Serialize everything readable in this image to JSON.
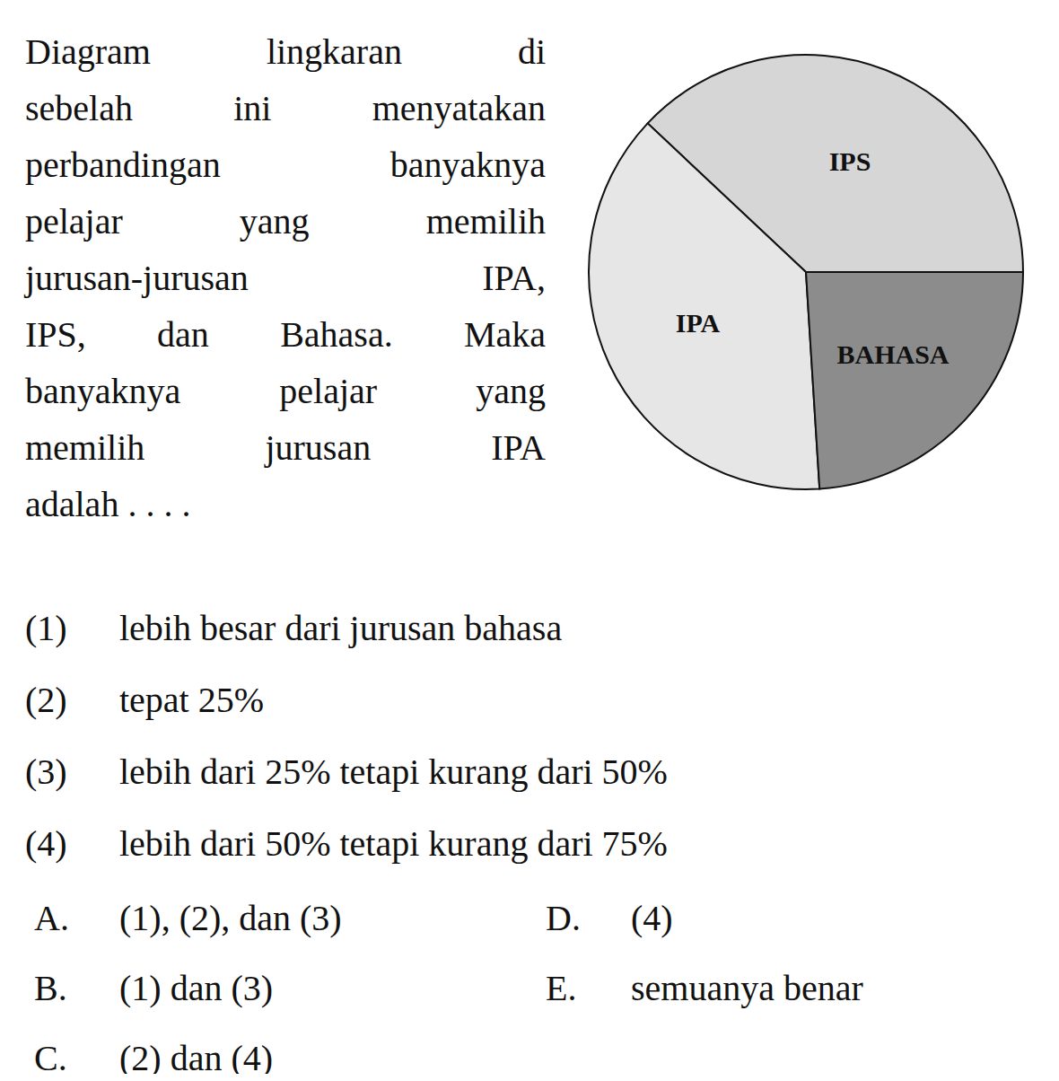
{
  "question": {
    "lines": [
      "Diagram lingkaran di",
      "sebelah ini menyatakan",
      "perbandingan banyaknya",
      "pelajar yang memilih",
      "jurusan-jurusan IPA,",
      "IPS, dan Bahasa. Maka",
      "banyaknya pelajar yang",
      "memilih jurusan IPA",
      "adalah . . . ."
    ],
    "statements": [
      {
        "number": "(1)",
        "text": "lebih besar dari jurusan bahasa"
      },
      {
        "number": "(2)",
        "text": "tepat 25%"
      },
      {
        "number": "(3)",
        "text": "lebih dari 25% tetapi kurang dari 50%"
      },
      {
        "number": "(4)",
        "text": "lebih dari 50% tetapi kurang dari 75%"
      }
    ],
    "options": [
      {
        "letter": "A.",
        "text": "(1), (2), dan (3)"
      },
      {
        "letter": "B.",
        "text": "(1) dan (3)"
      },
      {
        "letter": "C.",
        "text": "(2) dan (4)"
      },
      {
        "letter": "D.",
        "text": "(4)"
      },
      {
        "letter": "E.",
        "text": "semuanya benar"
      }
    ]
  },
  "chart_data": {
    "type": "pie",
    "categories": [
      "IPS",
      "IPA",
      "BAHASA"
    ],
    "values": [
      38,
      38,
      24
    ],
    "colors": [
      "#d6d6d6",
      "#e6e6e6",
      "#8c8c8c"
    ]
  }
}
